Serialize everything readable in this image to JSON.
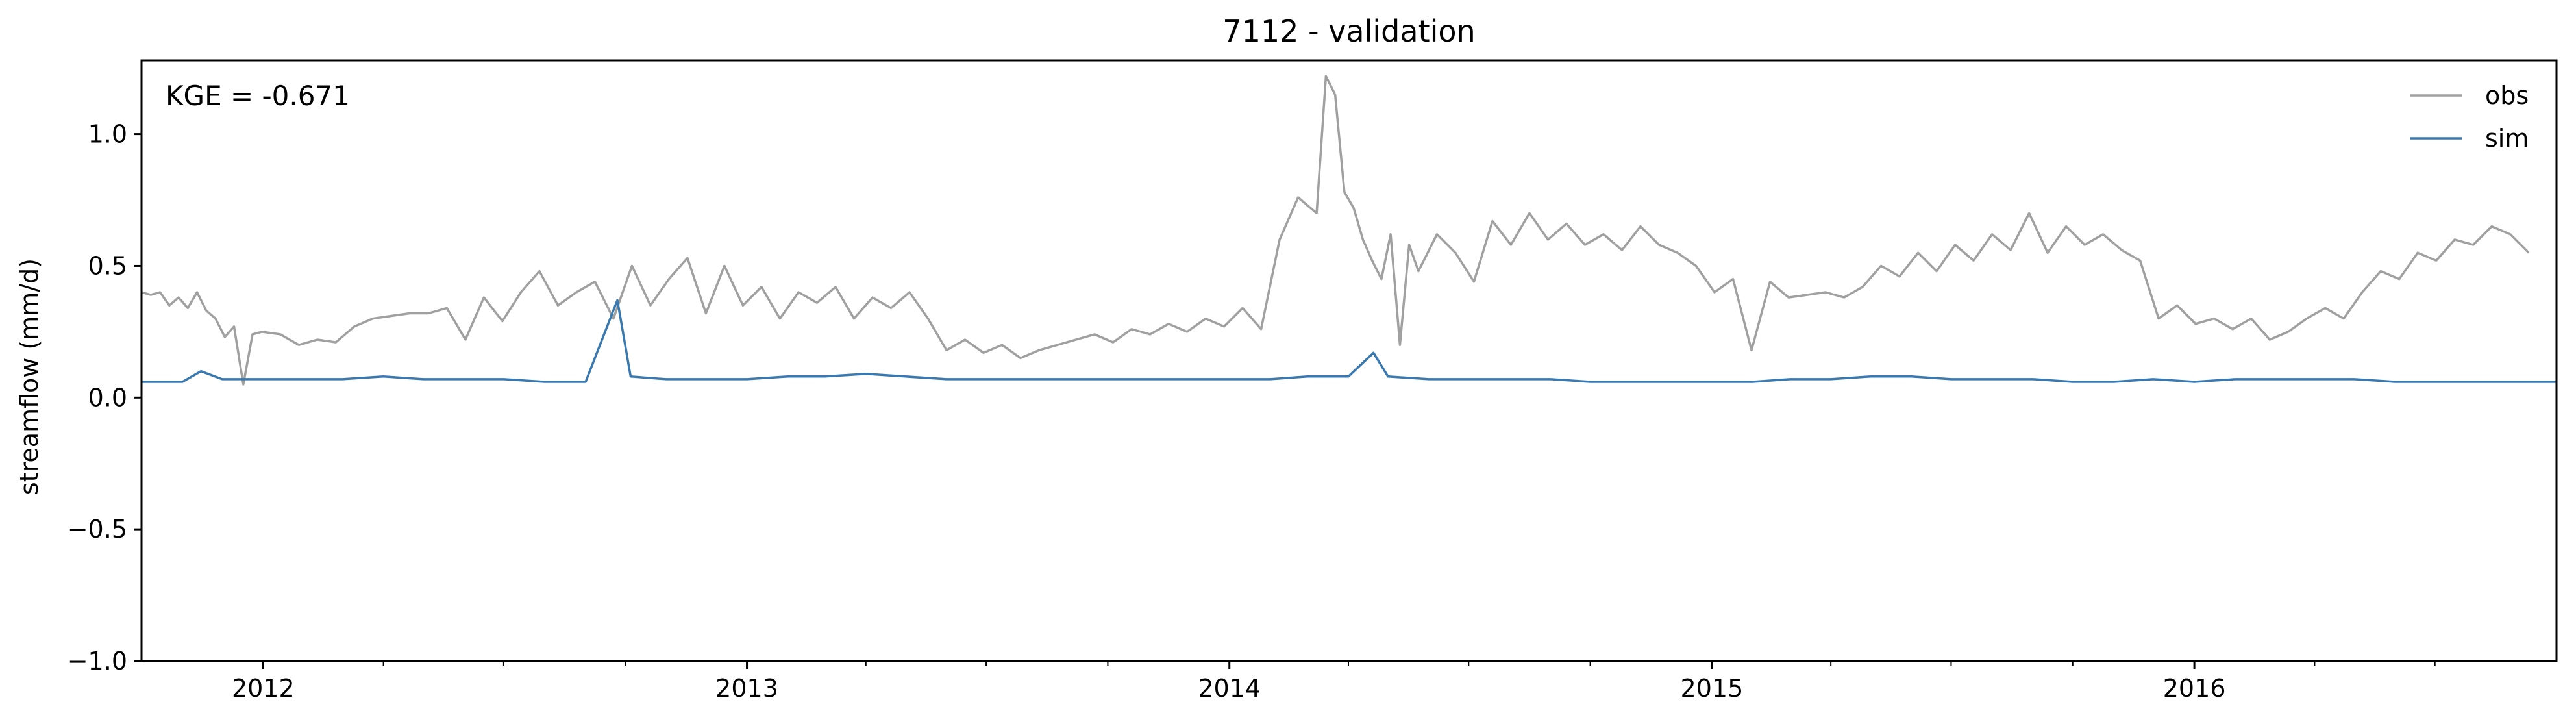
{
  "chart_data": {
    "type": "line",
    "title": "7112 - validation",
    "xlabel": "",
    "ylabel": "streamflow (mm/d)",
    "annotation": "KGE = -0.671",
    "xlim": [
      "2011-10-01",
      "2016-10-01"
    ],
    "ylim": [
      -1.0,
      1.28
    ],
    "yticks": [
      {
        "value": 1.0,
        "label": "1.0"
      },
      {
        "value": 0.5,
        "label": "0.5"
      },
      {
        "value": 0.0,
        "label": "0.0"
      },
      {
        "value": -0.5,
        "label": "−0.5"
      },
      {
        "value": -1.0,
        "label": "−1.0"
      }
    ],
    "xticks": [
      {
        "value": "2012-01-01",
        "label": "2012"
      },
      {
        "value": "2013-01-01",
        "label": "2013"
      },
      {
        "value": "2014-01-01",
        "label": "2014"
      },
      {
        "value": "2015-01-01",
        "label": "2015"
      },
      {
        "value": "2016-01-01",
        "label": "2016"
      }
    ],
    "legend": {
      "position": "top-right",
      "entries": [
        "obs",
        "sim"
      ]
    },
    "grid": false,
    "series": [
      {
        "name": "obs",
        "color": "#a0a0a0",
        "points": [
          [
            "2011-10-01",
            0.4
          ],
          [
            "2011-10-08",
            0.39
          ],
          [
            "2011-10-15",
            0.4
          ],
          [
            "2011-10-22",
            0.35
          ],
          [
            "2011-10-29",
            0.38
          ],
          [
            "2011-11-05",
            0.34
          ],
          [
            "2011-11-12",
            0.4
          ],
          [
            "2011-11-19",
            0.33
          ],
          [
            "2011-11-26",
            0.3
          ],
          [
            "2011-12-03",
            0.23
          ],
          [
            "2011-12-10",
            0.27
          ],
          [
            "2011-12-17",
            0.05
          ],
          [
            "2011-12-24",
            0.24
          ],
          [
            "2011-12-31",
            0.25
          ],
          [
            "2012-01-14",
            0.24
          ],
          [
            "2012-01-28",
            0.2
          ],
          [
            "2012-02-11",
            0.22
          ],
          [
            "2012-02-25",
            0.21
          ],
          [
            "2012-03-10",
            0.27
          ],
          [
            "2012-03-24",
            0.3
          ],
          [
            "2012-04-07",
            0.31
          ],
          [
            "2012-04-21",
            0.32
          ],
          [
            "2012-05-05",
            0.32
          ],
          [
            "2012-05-19",
            0.34
          ],
          [
            "2012-06-02",
            0.22
          ],
          [
            "2012-06-16",
            0.38
          ],
          [
            "2012-06-30",
            0.29
          ],
          [
            "2012-07-14",
            0.4
          ],
          [
            "2012-07-28",
            0.48
          ],
          [
            "2012-08-11",
            0.35
          ],
          [
            "2012-08-25",
            0.4
          ],
          [
            "2012-09-08",
            0.44
          ],
          [
            "2012-09-22",
            0.3
          ],
          [
            "2012-10-06",
            0.5
          ],
          [
            "2012-10-20",
            0.35
          ],
          [
            "2012-11-03",
            0.45
          ],
          [
            "2012-11-17",
            0.53
          ],
          [
            "2012-12-01",
            0.32
          ],
          [
            "2012-12-15",
            0.5
          ],
          [
            "2012-12-29",
            0.35
          ],
          [
            "2013-01-12",
            0.42
          ],
          [
            "2013-01-26",
            0.3
          ],
          [
            "2013-02-09",
            0.4
          ],
          [
            "2013-02-23",
            0.36
          ],
          [
            "2013-03-09",
            0.42
          ],
          [
            "2013-03-23",
            0.3
          ],
          [
            "2013-04-06",
            0.38
          ],
          [
            "2013-04-20",
            0.34
          ],
          [
            "2013-05-04",
            0.4
          ],
          [
            "2013-05-18",
            0.3
          ],
          [
            "2013-06-01",
            0.18
          ],
          [
            "2013-06-15",
            0.22
          ],
          [
            "2013-06-29",
            0.17
          ],
          [
            "2013-07-13",
            0.2
          ],
          [
            "2013-07-27",
            0.15
          ],
          [
            "2013-08-10",
            0.18
          ],
          [
            "2013-08-24",
            0.2
          ],
          [
            "2013-09-07",
            0.22
          ],
          [
            "2013-09-21",
            0.24
          ],
          [
            "2013-10-05",
            0.21
          ],
          [
            "2013-10-19",
            0.26
          ],
          [
            "2013-11-02",
            0.24
          ],
          [
            "2013-11-16",
            0.28
          ],
          [
            "2013-11-30",
            0.25
          ],
          [
            "2013-12-14",
            0.3
          ],
          [
            "2013-12-28",
            0.27
          ],
          [
            "2014-01-11",
            0.34
          ],
          [
            "2014-01-25",
            0.26
          ],
          [
            "2014-02-08",
            0.6
          ],
          [
            "2014-02-22",
            0.76
          ],
          [
            "2014-03-08",
            0.7
          ],
          [
            "2014-03-15",
            1.22
          ],
          [
            "2014-03-22",
            1.15
          ],
          [
            "2014-03-29",
            0.78
          ],
          [
            "2014-04-05",
            0.72
          ],
          [
            "2014-04-12",
            0.6
          ],
          [
            "2014-04-19",
            0.52
          ],
          [
            "2014-04-26",
            0.45
          ],
          [
            "2014-05-03",
            0.62
          ],
          [
            "2014-05-10",
            0.2
          ],
          [
            "2014-05-17",
            0.58
          ],
          [
            "2014-05-24",
            0.48
          ],
          [
            "2014-06-07",
            0.62
          ],
          [
            "2014-06-21",
            0.55
          ],
          [
            "2014-07-05",
            0.44
          ],
          [
            "2014-07-19",
            0.67
          ],
          [
            "2014-08-02",
            0.58
          ],
          [
            "2014-08-16",
            0.7
          ],
          [
            "2014-08-30",
            0.6
          ],
          [
            "2014-09-13",
            0.66
          ],
          [
            "2014-09-27",
            0.58
          ],
          [
            "2014-10-11",
            0.62
          ],
          [
            "2014-10-25",
            0.56
          ],
          [
            "2014-11-08",
            0.65
          ],
          [
            "2014-11-22",
            0.58
          ],
          [
            "2014-12-06",
            0.55
          ],
          [
            "2014-12-20",
            0.5
          ],
          [
            "2015-01-03",
            0.4
          ],
          [
            "2015-01-17",
            0.45
          ],
          [
            "2015-01-31",
            0.18
          ],
          [
            "2015-02-14",
            0.44
          ],
          [
            "2015-02-28",
            0.38
          ],
          [
            "2015-03-14",
            0.39
          ],
          [
            "2015-03-28",
            0.4
          ],
          [
            "2015-04-11",
            0.38
          ],
          [
            "2015-04-25",
            0.42
          ],
          [
            "2015-05-09",
            0.5
          ],
          [
            "2015-05-23",
            0.46
          ],
          [
            "2015-06-06",
            0.55
          ],
          [
            "2015-06-20",
            0.48
          ],
          [
            "2015-07-04",
            0.58
          ],
          [
            "2015-07-18",
            0.52
          ],
          [
            "2015-08-01",
            0.62
          ],
          [
            "2015-08-15",
            0.56
          ],
          [
            "2015-08-29",
            0.7
          ],
          [
            "2015-09-12",
            0.55
          ],
          [
            "2015-09-26",
            0.65
          ],
          [
            "2015-10-10",
            0.58
          ],
          [
            "2015-10-24",
            0.62
          ],
          [
            "2015-11-07",
            0.56
          ],
          [
            "2015-11-21",
            0.52
          ],
          [
            "2015-12-05",
            0.3
          ],
          [
            "2015-12-19",
            0.35
          ],
          [
            "2016-01-02",
            0.28
          ],
          [
            "2016-01-16",
            0.3
          ],
          [
            "2016-01-30",
            0.26
          ],
          [
            "2016-02-13",
            0.3
          ],
          [
            "2016-02-27",
            0.22
          ],
          [
            "2016-03-12",
            0.25
          ],
          [
            "2016-03-26",
            0.3
          ],
          [
            "2016-04-09",
            0.34
          ],
          [
            "2016-04-23",
            0.3
          ],
          [
            "2016-05-07",
            0.4
          ],
          [
            "2016-05-21",
            0.48
          ],
          [
            "2016-06-04",
            0.45
          ],
          [
            "2016-06-18",
            0.55
          ],
          [
            "2016-07-02",
            0.52
          ],
          [
            "2016-07-16",
            0.6
          ],
          [
            "2016-07-30",
            0.58
          ],
          [
            "2016-08-13",
            0.65
          ],
          [
            "2016-08-27",
            0.62
          ],
          [
            "2016-09-10",
            0.55
          ]
        ]
      },
      {
        "name": "sim",
        "color": "#3a78b0",
        "points": [
          [
            "2011-10-01",
            0.06
          ],
          [
            "2011-11-01",
            0.06
          ],
          [
            "2011-11-15",
            0.1
          ],
          [
            "2011-12-01",
            0.07
          ],
          [
            "2012-01-01",
            0.07
          ],
          [
            "2012-02-01",
            0.07
          ],
          [
            "2012-03-01",
            0.07
          ],
          [
            "2012-04-01",
            0.08
          ],
          [
            "2012-05-01",
            0.07
          ],
          [
            "2012-06-01",
            0.07
          ],
          [
            "2012-07-01",
            0.07
          ],
          [
            "2012-08-01",
            0.06
          ],
          [
            "2012-09-01",
            0.06
          ],
          [
            "2012-09-25",
            0.37
          ],
          [
            "2012-10-05",
            0.08
          ],
          [
            "2012-11-01",
            0.07
          ],
          [
            "2012-12-01",
            0.07
          ],
          [
            "2013-01-01",
            0.07
          ],
          [
            "2013-02-01",
            0.08
          ],
          [
            "2013-03-01",
            0.08
          ],
          [
            "2013-04-01",
            0.09
          ],
          [
            "2013-05-01",
            0.08
          ],
          [
            "2013-06-01",
            0.07
          ],
          [
            "2013-07-01",
            0.07
          ],
          [
            "2013-08-01",
            0.07
          ],
          [
            "2013-09-01",
            0.07
          ],
          [
            "2013-10-01",
            0.07
          ],
          [
            "2013-11-01",
            0.07
          ],
          [
            "2013-12-01",
            0.07
          ],
          [
            "2014-01-01",
            0.07
          ],
          [
            "2014-02-01",
            0.07
          ],
          [
            "2014-03-01",
            0.08
          ],
          [
            "2014-04-01",
            0.08
          ],
          [
            "2014-04-20",
            0.17
          ],
          [
            "2014-05-01",
            0.08
          ],
          [
            "2014-06-01",
            0.07
          ],
          [
            "2014-07-01",
            0.07
          ],
          [
            "2014-08-01",
            0.07
          ],
          [
            "2014-09-01",
            0.07
          ],
          [
            "2014-10-01",
            0.06
          ],
          [
            "2014-11-01",
            0.06
          ],
          [
            "2014-12-01",
            0.06
          ],
          [
            "2015-01-01",
            0.06
          ],
          [
            "2015-02-01",
            0.06
          ],
          [
            "2015-03-01",
            0.07
          ],
          [
            "2015-04-01",
            0.07
          ],
          [
            "2015-05-01",
            0.08
          ],
          [
            "2015-06-01",
            0.08
          ],
          [
            "2015-07-01",
            0.07
          ],
          [
            "2015-08-01",
            0.07
          ],
          [
            "2015-09-01",
            0.07
          ],
          [
            "2015-10-01",
            0.06
          ],
          [
            "2015-11-01",
            0.06
          ],
          [
            "2015-12-01",
            0.07
          ],
          [
            "2016-01-01",
            0.06
          ],
          [
            "2016-02-01",
            0.07
          ],
          [
            "2016-03-01",
            0.07
          ],
          [
            "2016-04-01",
            0.07
          ],
          [
            "2016-05-01",
            0.07
          ],
          [
            "2016-06-01",
            0.06
          ],
          [
            "2016-07-01",
            0.06
          ],
          [
            "2016-08-01",
            0.06
          ],
          [
            "2016-09-01",
            0.06
          ],
          [
            "2016-10-01",
            0.06
          ]
        ]
      }
    ]
  }
}
